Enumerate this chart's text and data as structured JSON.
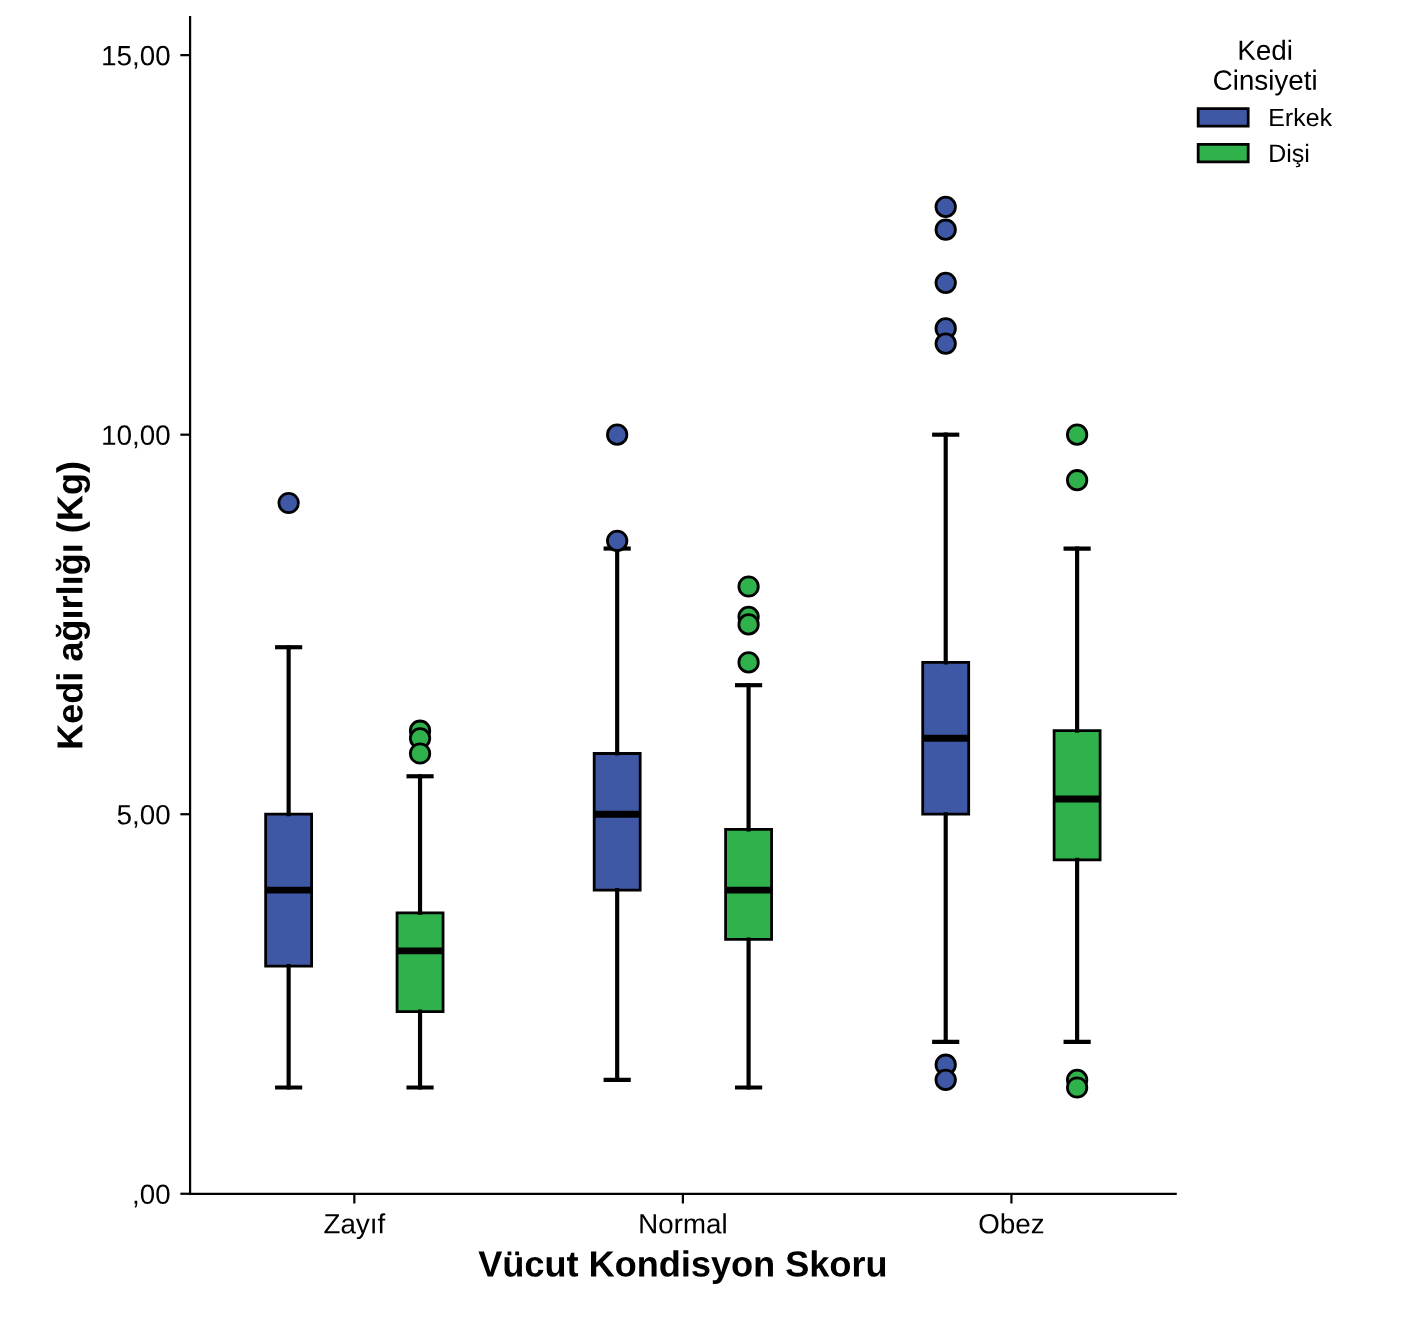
{
  "chart_data": {
    "type": "box",
    "xlabel": "Vücut Kondisyon Skoru",
    "ylabel": "Kedi ağırlığı (Kg)",
    "legend_title": "Kedi\nCinsiyeti",
    "legend": "top right",
    "categories": [
      "Zayıf",
      "Normal",
      "Obez"
    ],
    "ylim": [
      0,
      15.5
    ],
    "yticks": [
      {
        "value": 0,
        "label": ",00"
      },
      {
        "value": 5,
        "label": "5,00"
      },
      {
        "value": 10,
        "label": "10,00"
      },
      {
        "value": 15,
        "label": "15,00"
      }
    ],
    "grid": false,
    "series": [
      {
        "name": "Erkek",
        "color": "#3f58a6",
        "boxes": [
          {
            "low": 1.4,
            "q1": 3.0,
            "median": 4.0,
            "q3": 5.0,
            "high": 7.2,
            "outliers": [
              9.1
            ]
          },
          {
            "low": 1.5,
            "q1": 4.0,
            "median": 5.0,
            "q3": 5.8,
            "high": 8.5,
            "outliers": [
              10.0,
              8.6
            ]
          },
          {
            "low": 2.0,
            "q1": 5.0,
            "median": 6.0,
            "q3": 7.0,
            "high": 10.0,
            "outliers": [
              13.0,
              12.7,
              12.0,
              11.4,
              11.2,
              1.7,
              1.5
            ]
          }
        ]
      },
      {
        "name": "Dişi",
        "color": "#2fb24c",
        "boxes": [
          {
            "low": 1.4,
            "q1": 2.4,
            "median": 3.2,
            "q3": 3.7,
            "high": 5.5,
            "outliers": [
              6.1,
              6.0,
              5.8
            ]
          },
          {
            "low": 1.4,
            "q1": 3.35,
            "median": 4.0,
            "q3": 4.8,
            "high": 6.7,
            "outliers": [
              8.0,
              7.6,
              7.5,
              7.0
            ]
          },
          {
            "low": 2.0,
            "q1": 4.4,
            "median": 5.2,
            "q3": 6.1,
            "high": 8.5,
            "outliers": [
              10.0,
              9.4,
              1.5,
              1.4
            ]
          }
        ]
      }
    ]
  }
}
